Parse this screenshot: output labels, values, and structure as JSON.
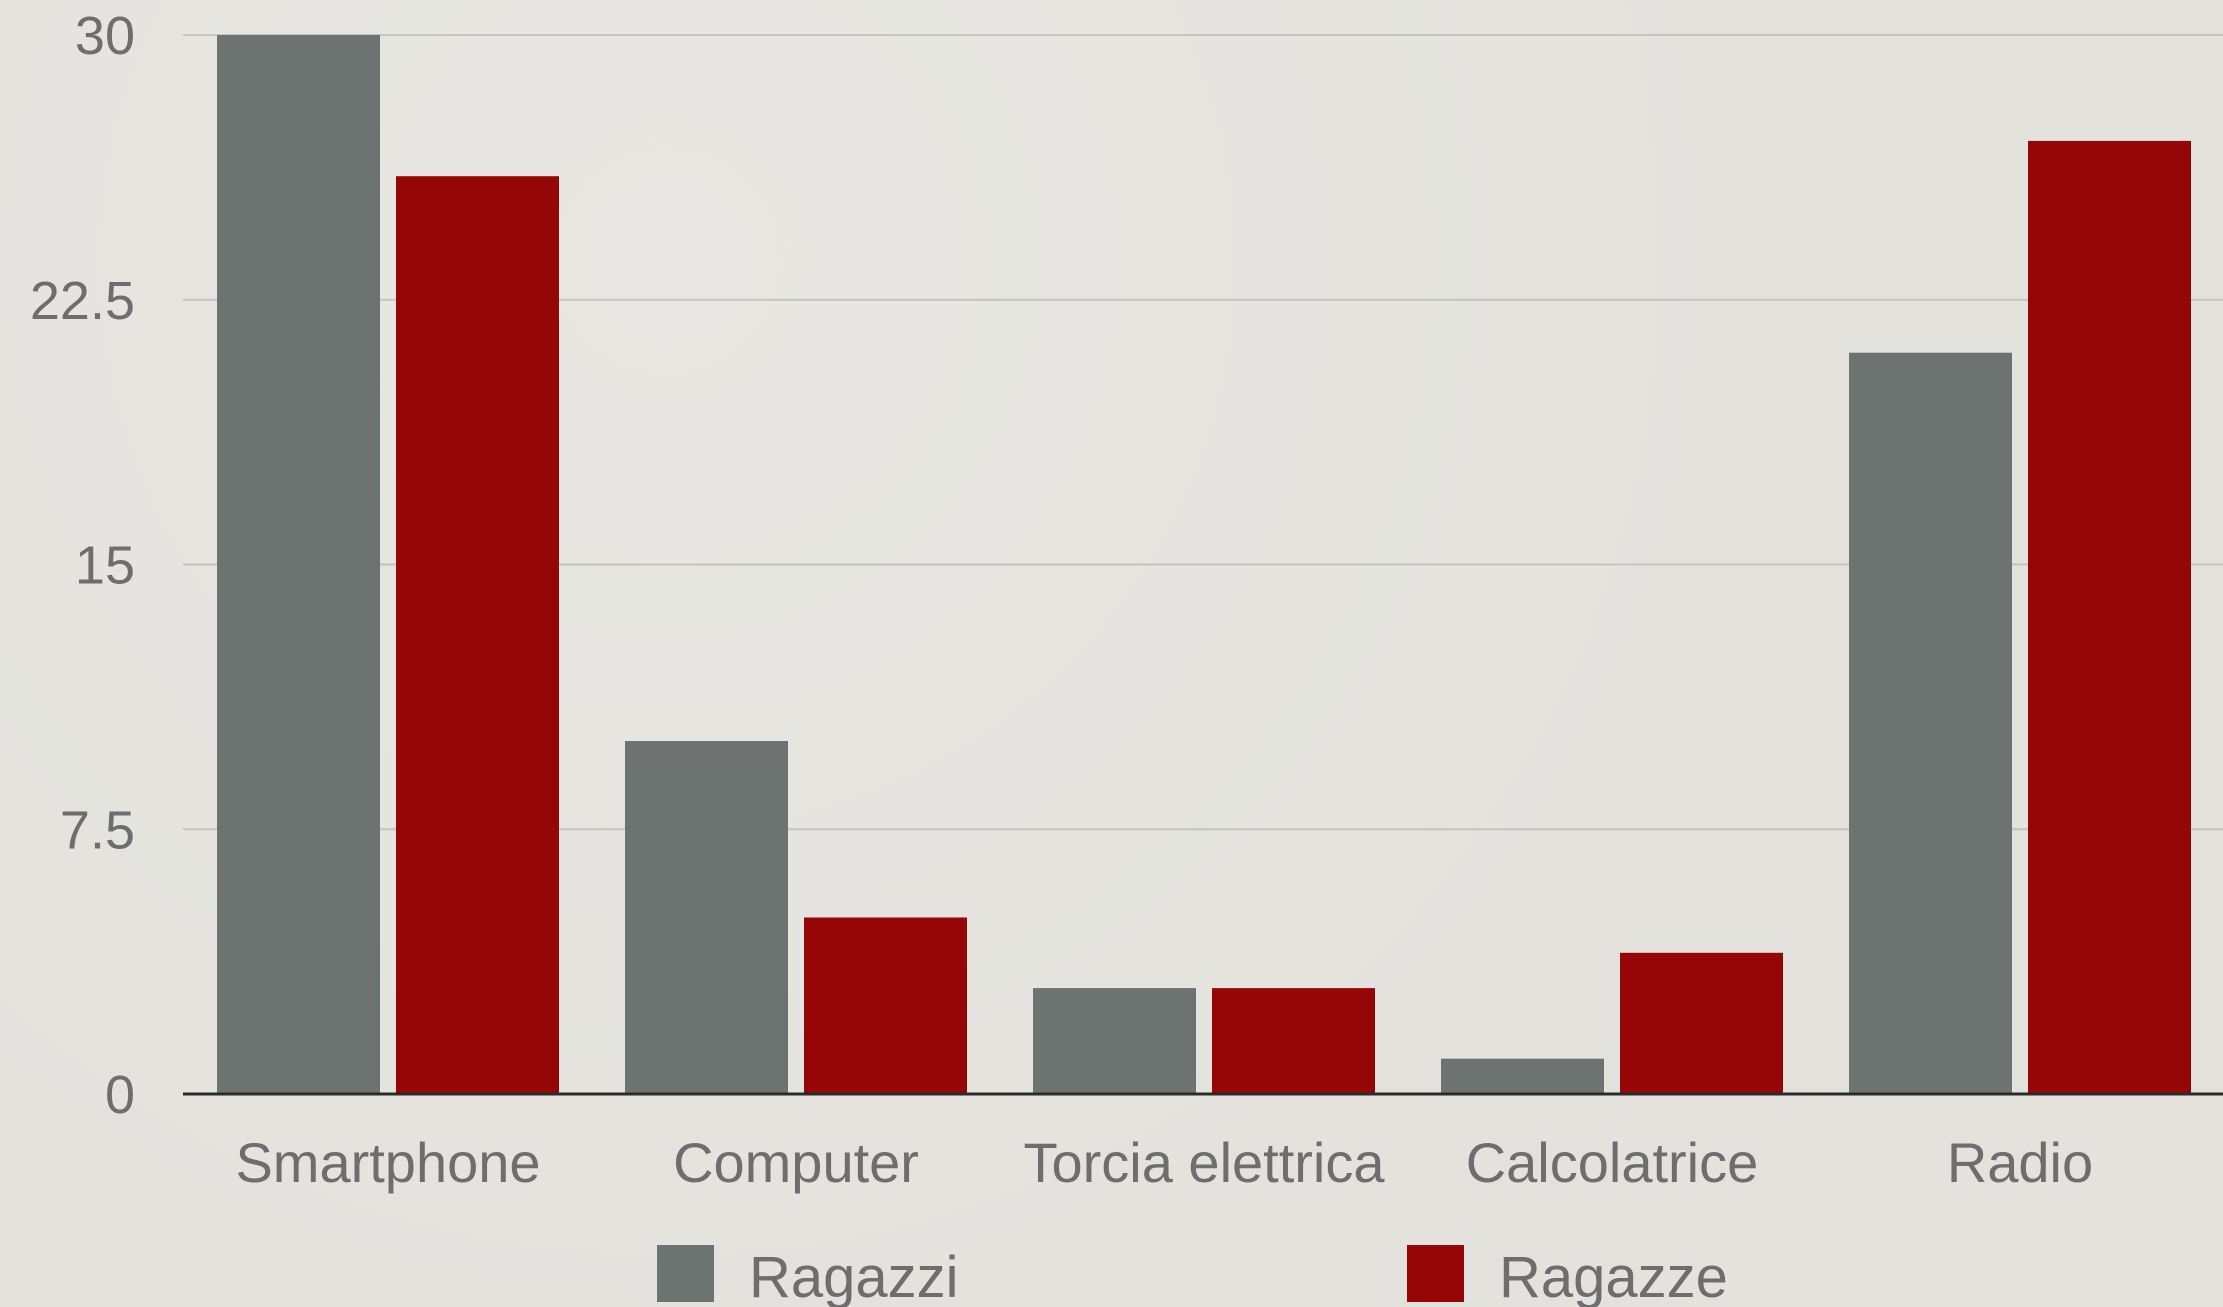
{
  "chart_data": {
    "type": "bar",
    "title": "",
    "xlabel": "",
    "ylabel": "",
    "ylim": [
      0,
      30
    ],
    "yticks": [
      "0",
      "7.5",
      "15",
      "22.5",
      "30"
    ],
    "ytick_values": [
      0,
      7.5,
      15,
      22.5,
      30
    ],
    "grid": true,
    "legend_position": "bottom",
    "categories": [
      "Smartphone",
      "Computer",
      "Torcia elettrica",
      "Calcolatrice",
      "Radio"
    ],
    "series": [
      {
        "name": "Ragazzi",
        "color": "#6d7370",
        "values": [
          30,
          10,
          3,
          1,
          21
        ]
      },
      {
        "name": "Ragazze",
        "color": "#960606",
        "values": [
          26,
          5,
          3,
          4,
          27
        ]
      }
    ],
    "colors": {
      "gridline": "#c4c4c0",
      "axis": "#2b2b2b",
      "text": "#6e6e6e"
    }
  }
}
